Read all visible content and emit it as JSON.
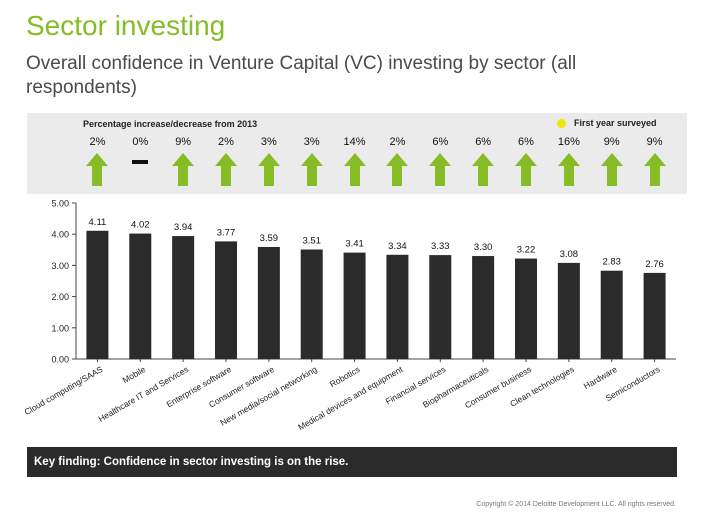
{
  "header": {
    "title": "Sector investing",
    "subtitle": "Overall confidence in Venture Capital (VC) investing by sector (all respondents)"
  },
  "change_panel": {
    "label": "Percentage increase/decrease from 2013",
    "legend_label": "First year surveyed",
    "changes": [
      {
        "text": "2%",
        "direction": "up",
        "first_year": false
      },
      {
        "text": "0%",
        "direction": "flat",
        "first_year": false
      },
      {
        "text": "9%",
        "direction": "up",
        "first_year": false
      },
      {
        "text": "2%",
        "direction": "up",
        "first_year": false
      },
      {
        "text": "3%",
        "direction": "up",
        "first_year": false
      },
      {
        "text": "3%",
        "direction": "up",
        "first_year": false
      },
      {
        "text": "14%",
        "direction": "up",
        "first_year": false
      },
      {
        "text": "2%",
        "direction": "up",
        "first_year": false
      },
      {
        "text": "6%",
        "direction": "up",
        "first_year": false
      },
      {
        "text": "6%",
        "direction": "up",
        "first_year": false
      },
      {
        "text": "6%",
        "direction": "up",
        "first_year": false
      },
      {
        "text": "16%",
        "direction": "up",
        "first_year": false
      },
      {
        "text": "9%",
        "direction": "up",
        "first_year": false
      },
      {
        "text": "9%",
        "direction": "up",
        "first_year": false
      }
    ],
    "colors": {
      "arrow": "#86bc25",
      "dot": "#f2e600",
      "panel_bg": "#ebebeb"
    }
  },
  "chart_data": {
    "type": "bar",
    "categories": [
      "Cloud computing/SAAS",
      "Mobile",
      "Healthcare IT and Services",
      "Enterprise software",
      "Consumer software",
      "New media/social networking",
      "Robotics",
      "Medical devices and equipment",
      "Financial services",
      "Biopharmaceuticals",
      "Consumer business",
      "Clean technologies",
      "Hardware",
      "Semiconductors"
    ],
    "values": [
      4.11,
      4.02,
      3.94,
      3.77,
      3.59,
      3.51,
      3.41,
      3.34,
      3.33,
      3.3,
      3.22,
      3.08,
      2.83,
      2.76
    ],
    "value_labels": [
      "4.11",
      "4.02",
      "3.94",
      "3.77",
      "3.59",
      "3.51",
      "3.41",
      "3.34",
      "3.33",
      "3.30",
      "3.22",
      "3.08",
      "2.83",
      "2.76"
    ],
    "ylim": [
      0,
      5
    ],
    "yticks": [
      "0.00",
      "1.00",
      "2.00",
      "3.00",
      "4.00",
      "5.00"
    ],
    "title": "",
    "xlabel": "",
    "ylabel": "",
    "grid": false,
    "bar_color": "#2b2b2b"
  },
  "footer": {
    "key_finding": "Key finding: Confidence in sector investing is on the rise.",
    "copyright": "Copyright © 2014 Deloitte Development LLC. All rights reserved."
  }
}
